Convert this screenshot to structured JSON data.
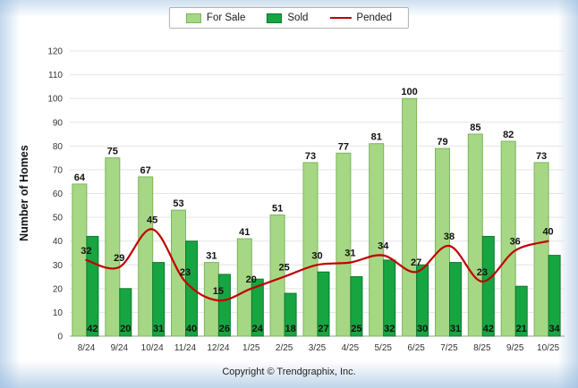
{
  "chart_data": {
    "type": "combo",
    "categories": [
      "8/24",
      "9/24",
      "10/24",
      "11/24",
      "12/24",
      "1/25",
      "2/25",
      "3/25",
      "4/25",
      "5/25",
      "6/25",
      "7/25",
      "8/25",
      "9/25",
      "10/25"
    ],
    "series": [
      {
        "name": "For Sale",
        "type": "bar",
        "color": "#A6D785",
        "border": "#7DB45A",
        "values": [
          64,
          75,
          67,
          53,
          31,
          41,
          51,
          73,
          77,
          81,
          100,
          79,
          85,
          82,
          73
        ]
      },
      {
        "name": "Sold",
        "type": "bar",
        "color": "#17A541",
        "border": "#0C7A2D",
        "values": [
          42,
          20,
          31,
          40,
          26,
          24,
          18,
          27,
          25,
          32,
          30,
          31,
          42,
          21,
          34
        ]
      },
      {
        "name": "Pended",
        "type": "line",
        "color": "#C00000",
        "values": [
          32,
          29,
          45,
          23,
          15,
          20,
          25,
          30,
          31,
          34,
          27,
          38,
          23,
          36,
          40
        ]
      }
    ],
    "title": "",
    "xlabel": "",
    "ylabel": "Number of Homes",
    "ylim": [
      0,
      120
    ],
    "ytick_step": 10,
    "grid": true,
    "legend_position": "top",
    "label_color": "#111111",
    "tick_color": "#333333"
  },
  "footer": {
    "copyright": "Copyright © Trendgraphix, Inc."
  }
}
